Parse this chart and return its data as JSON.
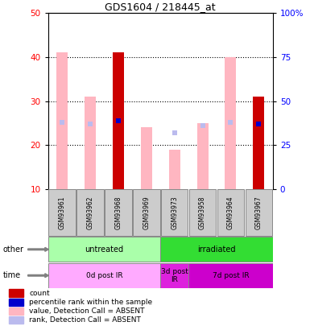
{
  "title": "GDS1604 / 218445_at",
  "samples": [
    "GSM93961",
    "GSM93962",
    "GSM93968",
    "GSM93969",
    "GSM93973",
    "GSM93958",
    "GSM93964",
    "GSM93967"
  ],
  "bar_values": [
    41,
    31,
    41,
    24,
    19,
    25,
    40,
    31
  ],
  "bar_is_red": [
    false,
    false,
    true,
    false,
    false,
    false,
    false,
    true
  ],
  "rank_dots": [
    38,
    37,
    39,
    null,
    32,
    36,
    38,
    37
  ],
  "rank_dot_is_blue": [
    false,
    false,
    true,
    false,
    false,
    false,
    false,
    true
  ],
  "ylim_left": [
    10,
    50
  ],
  "ylim_right": [
    0,
    100
  ],
  "yticks_left": [
    10,
    20,
    30,
    40,
    50
  ],
  "yticks_right": [
    0,
    25,
    50,
    75,
    100
  ],
  "yticklabels_right": [
    "0",
    "25",
    "50",
    "75",
    "100%"
  ],
  "grid_lines": [
    20,
    30,
    40
  ],
  "group_other": [
    {
      "label": "untreated",
      "start": 0,
      "end": 4,
      "color": "#AAFFAA"
    },
    {
      "label": "irradiated",
      "start": 4,
      "end": 8,
      "color": "#33DD33"
    }
  ],
  "group_time": [
    {
      "label": "0d post IR",
      "start": 0,
      "end": 4,
      "color": "#FFAAFF"
    },
    {
      "label": "3d post\nIR",
      "start": 4,
      "end": 5,
      "color": "#DD22DD"
    },
    {
      "label": "7d post IR",
      "start": 5,
      "end": 8,
      "color": "#CC00CC"
    }
  ],
  "legend_items": [
    {
      "color": "#CC0000",
      "label": "count"
    },
    {
      "color": "#0000CC",
      "label": "percentile rank within the sample"
    },
    {
      "color": "#FFB6C1",
      "label": "value, Detection Call = ABSENT"
    },
    {
      "color": "#BBBBEE",
      "label": "rank, Detection Call = ABSENT"
    }
  ],
  "pink_bar_color": "#FFB6C1",
  "red_bar_color": "#CC0000",
  "rank_dot_color": "#BBBBEE",
  "blue_dot_color": "#0000CC",
  "bar_width": 0.4,
  "dot_size": 5
}
